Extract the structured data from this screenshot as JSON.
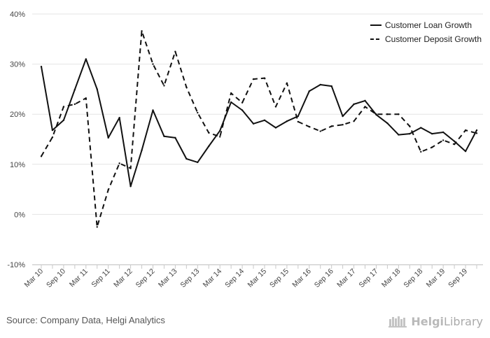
{
  "chart_data": {
    "type": "line",
    "title": "",
    "xlabel": "",
    "ylabel": "",
    "y_unit": "%",
    "ylim": [
      -10,
      40
    ],
    "y_ticks": [
      40,
      30,
      20,
      10,
      0,
      -10
    ],
    "y_tick_labels": [
      "40%",
      "30%",
      "20%",
      "10%",
      "0%",
      "-10%"
    ],
    "x_tick_labels": [
      "Mar 10",
      "Sep 10",
      "Mar 11",
      "Sep 11",
      "Mar 12",
      "Sep 12",
      "Mar 13",
      "Sep 13",
      "Mar 14",
      "Sep 14",
      "Mar 15",
      "Sep 15",
      "Mar 16",
      "Sep 16",
      "Mar 17",
      "Sep 17",
      "Mar 18",
      "Sep 18",
      "Mar 19",
      "Sep 19"
    ],
    "grid": true,
    "legend_position": "top-right",
    "series": [
      {
        "name": "Customer Loan Growth",
        "style": "solid",
        "color": "#111111",
        "values": [
          29.5,
          16.8,
          18.8,
          24.9,
          31.0,
          25.0,
          15.3,
          19.3,
          5.6,
          12.8,
          20.8,
          15.6,
          15.3,
          11.1,
          10.4,
          13.6,
          16.7,
          22.4,
          20.8,
          18.1,
          18.8,
          17.3,
          18.6,
          19.6,
          24.6,
          25.9,
          25.6,
          19.6,
          22.0,
          22.7,
          19.9,
          18.2,
          15.9,
          16.1,
          17.3,
          16.1,
          16.4,
          14.6,
          12.6,
          16.8
        ]
      },
      {
        "name": "Customer Deposit Growth",
        "style": "dashed",
        "color": "#111111",
        "values": [
          11.6,
          15.4,
          21.5,
          22.0,
          23.2,
          -2.5,
          4.9,
          10.2,
          9.2,
          36.6,
          30.0,
          25.7,
          32.5,
          25.4,
          20.3,
          16.3,
          15.5,
          24.2,
          22.3,
          27.0,
          27.2,
          21.5,
          26.2,
          18.5,
          17.5,
          16.6,
          17.6,
          17.9,
          18.6,
          21.5,
          20.0,
          20.0,
          20.0,
          17.6,
          12.5,
          13.4,
          14.8,
          14.0,
          16.8,
          16.2
        ]
      }
    ]
  },
  "footer": {
    "source": "Source: Company Data, Helgi Analytics",
    "logo_brand": "Helgi",
    "logo_suffix": "Library"
  }
}
